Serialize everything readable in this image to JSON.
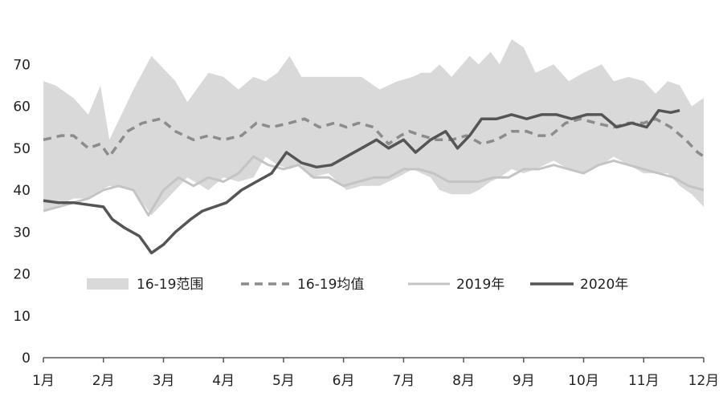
{
  "chart_data": {
    "type": "line",
    "categories": [
      "1月",
      "2月",
      "3月",
      "4月",
      "5月",
      "6月",
      "7月",
      "8月",
      "9月",
      "10月",
      "11月",
      "12月"
    ],
    "yticks": [
      "0",
      "10",
      "20",
      "30",
      "40",
      "50",
      "60",
      "70"
    ],
    "ylim": [
      0,
      80
    ],
    "xlim": [
      0,
      11
    ],
    "grid": false,
    "legend_position": "middle",
    "colors": {
      "range_fill": "#d9d9d9",
      "avg": "#8c8c8c",
      "y2019": "#c4c4c4",
      "y2020": "#555555"
    },
    "series": [
      {
        "name": "16-19范围",
        "kind": "range",
        "x": [
          0,
          0.2,
          0.5,
          0.75,
          0.95,
          1.1,
          1.5,
          1.8,
          2.2,
          2.4,
          2.75,
          3.0,
          3.25,
          3.5,
          3.7,
          3.9,
          4.1,
          4.3,
          4.45,
          4.75,
          5.05,
          5.3,
          5.6,
          5.9,
          6.15,
          6.3,
          6.45,
          6.6,
          6.8,
          7.1,
          7.25,
          7.45,
          7.6,
          7.8,
          8.0,
          8.2,
          8.5,
          8.75,
          9.0,
          9.3,
          9.5,
          9.75,
          10.0,
          10.2,
          10.4,
          10.6,
          10.8,
          11.0
        ],
        "upper": [
          66,
          65,
          62,
          58,
          65,
          52,
          64,
          72,
          66,
          61,
          68,
          67,
          64,
          67,
          66,
          68,
          72,
          67,
          67,
          67,
          67,
          67,
          64,
          66,
          67,
          68,
          68,
          70,
          67,
          72,
          70,
          73,
          70,
          76,
          74,
          68,
          70,
          66,
          68,
          70,
          66,
          67,
          66,
          63,
          66,
          65,
          60,
          62
        ],
        "lower": [
          35,
          36,
          38,
          38,
          40,
          41,
          40,
          34,
          40,
          43,
          40,
          43,
          42,
          43,
          48,
          46,
          45,
          46,
          43,
          44,
          40,
          41,
          41,
          43,
          45,
          44,
          43,
          40,
          39,
          39,
          40,
          42,
          43,
          45,
          44,
          45,
          47,
          45,
          44,
          46,
          48,
          46,
          44,
          44,
          44,
          41,
          39,
          36
        ]
      },
      {
        "name": "16-19均值",
        "kind": "dashed",
        "x": [
          0,
          0.3,
          0.5,
          0.75,
          0.95,
          1.1,
          1.4,
          1.65,
          1.95,
          2.2,
          2.5,
          2.75,
          3.0,
          3.3,
          3.55,
          3.8,
          4.1,
          4.35,
          4.6,
          4.85,
          5.05,
          5.25,
          5.5,
          5.75,
          5.95,
          6.1,
          6.3,
          6.55,
          6.8,
          7.05,
          7.3,
          7.55,
          7.8,
          8.05,
          8.25,
          8.45,
          8.7,
          8.95,
          9.2,
          9.5,
          9.75,
          10.0,
          10.2,
          10.45,
          10.7,
          10.9,
          11.0
        ],
        "values": [
          52,
          53,
          53,
          50,
          51,
          48,
          54,
          56,
          57,
          54,
          52,
          53,
          52,
          53,
          56,
          55,
          56,
          57,
          55,
          56,
          55,
          56,
          55,
          51,
          53,
          54,
          53,
          52,
          52,
          53,
          51,
          52,
          54,
          54,
          53,
          53,
          56,
          57,
          56,
          55,
          56,
          56,
          57,
          55,
          52,
          49,
          48
        ]
      },
      {
        "name": "2019年",
        "kind": "line",
        "x": [
          0,
          0.25,
          0.5,
          0.75,
          1.0,
          1.25,
          1.5,
          1.75,
          2.0,
          2.25,
          2.5,
          2.75,
          3.0,
          3.25,
          3.5,
          3.75,
          4.0,
          4.25,
          4.5,
          4.75,
          5.0,
          5.25,
          5.5,
          5.75,
          6.0,
          6.25,
          6.5,
          6.75,
          7.0,
          7.25,
          7.5,
          7.75,
          8.0,
          8.25,
          8.5,
          8.75,
          9.0,
          9.25,
          9.5,
          9.75,
          10.0,
          10.25,
          10.5,
          10.75,
          11.0
        ],
        "values": [
          35,
          36,
          37,
          38,
          40,
          41,
          40,
          34,
          40,
          43,
          41,
          43,
          42,
          44,
          48,
          46,
          45,
          46,
          43,
          43,
          41,
          42,
          43,
          43,
          45,
          45,
          44,
          42,
          42,
          42,
          43,
          43,
          45,
          45,
          46,
          45,
          44,
          46,
          47,
          46,
          45,
          44,
          43,
          41,
          40
        ]
      },
      {
        "name": "2020年",
        "kind": "line",
        "x": [
          0,
          0.25,
          0.5,
          0.75,
          1.0,
          1.15,
          1.35,
          1.6,
          1.8,
          2.0,
          2.2,
          2.45,
          2.65,
          2.85,
          3.05,
          3.3,
          3.55,
          3.8,
          4.05,
          4.3,
          4.55,
          4.8,
          5.05,
          5.3,
          5.55,
          5.75,
          6.0,
          6.2,
          6.45,
          6.7,
          6.9,
          7.1,
          7.3,
          7.55,
          7.8,
          8.05,
          8.3,
          8.55,
          8.8,
          9.05,
          9.3,
          9.55,
          9.8,
          10.05,
          10.25,
          10.45,
          10.6
        ],
        "values": [
          37.5,
          37,
          37,
          36.5,
          36,
          33,
          31,
          29,
          25,
          27,
          30,
          33,
          35,
          36,
          37,
          40,
          42,
          44,
          49,
          46.5,
          45.5,
          46,
          48,
          50,
          52,
          50,
          52,
          49,
          52,
          54,
          50,
          53,
          57,
          57,
          58,
          57,
          58,
          58,
          57,
          58,
          58,
          55,
          56,
          55,
          59,
          58.5,
          59
        ]
      }
    ]
  }
}
